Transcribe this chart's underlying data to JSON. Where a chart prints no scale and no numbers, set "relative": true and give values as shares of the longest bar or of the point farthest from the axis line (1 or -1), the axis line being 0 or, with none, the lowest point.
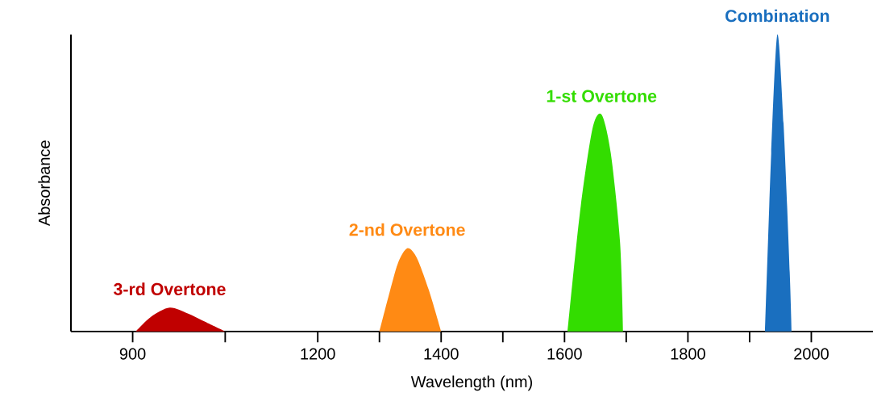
{
  "chart_data": {
    "type": "area",
    "relative": true,
    "xlabel": "Wavelength (nm)",
    "ylabel": "Absorbance",
    "xlim": [
      800,
      2100
    ],
    "xticks": [
      900,
      {
        "value": 1050,
        "label": null
      },
      1200,
      {
        "value": 1300,
        "label": null
      },
      1400,
      {
        "value": 1500,
        "label": null
      },
      1600,
      {
        "value": 1700,
        "label": null
      },
      1800,
      {
        "value": 1900,
        "label": null
      },
      2000
    ],
    "series": [
      {
        "name": "3-rd Overtone",
        "color": "#c00000",
        "x": [
          905,
          930,
          960,
          990,
          1020,
          1050
        ],
        "values": [
          0,
          0.05,
          0.08,
          0.06,
          0.03,
          0
        ]
      },
      {
        "name": "2-nd Overtone",
        "color": "#ff8a14",
        "x": [
          1300,
          1315,
          1330,
          1345,
          1360,
          1380,
          1400
        ],
        "values": [
          0,
          0.12,
          0.23,
          0.28,
          0.25,
          0.14,
          0
        ]
      },
      {
        "name": "1-st Overtone",
        "color": "#33dd00",
        "x": [
          1605,
          1625,
          1645,
          1660,
          1675,
          1690,
          1695
        ],
        "values": [
          0,
          0.4,
          0.68,
          0.73,
          0.6,
          0.3,
          0
        ]
      },
      {
        "name": "Combination",
        "color": "#1a6fbf",
        "x": [
          1925,
          1935,
          1945,
          1955,
          1965,
          1968
        ],
        "values": [
          0,
          0.6,
          1,
          0.7,
          0.2,
          0
        ]
      }
    ]
  }
}
